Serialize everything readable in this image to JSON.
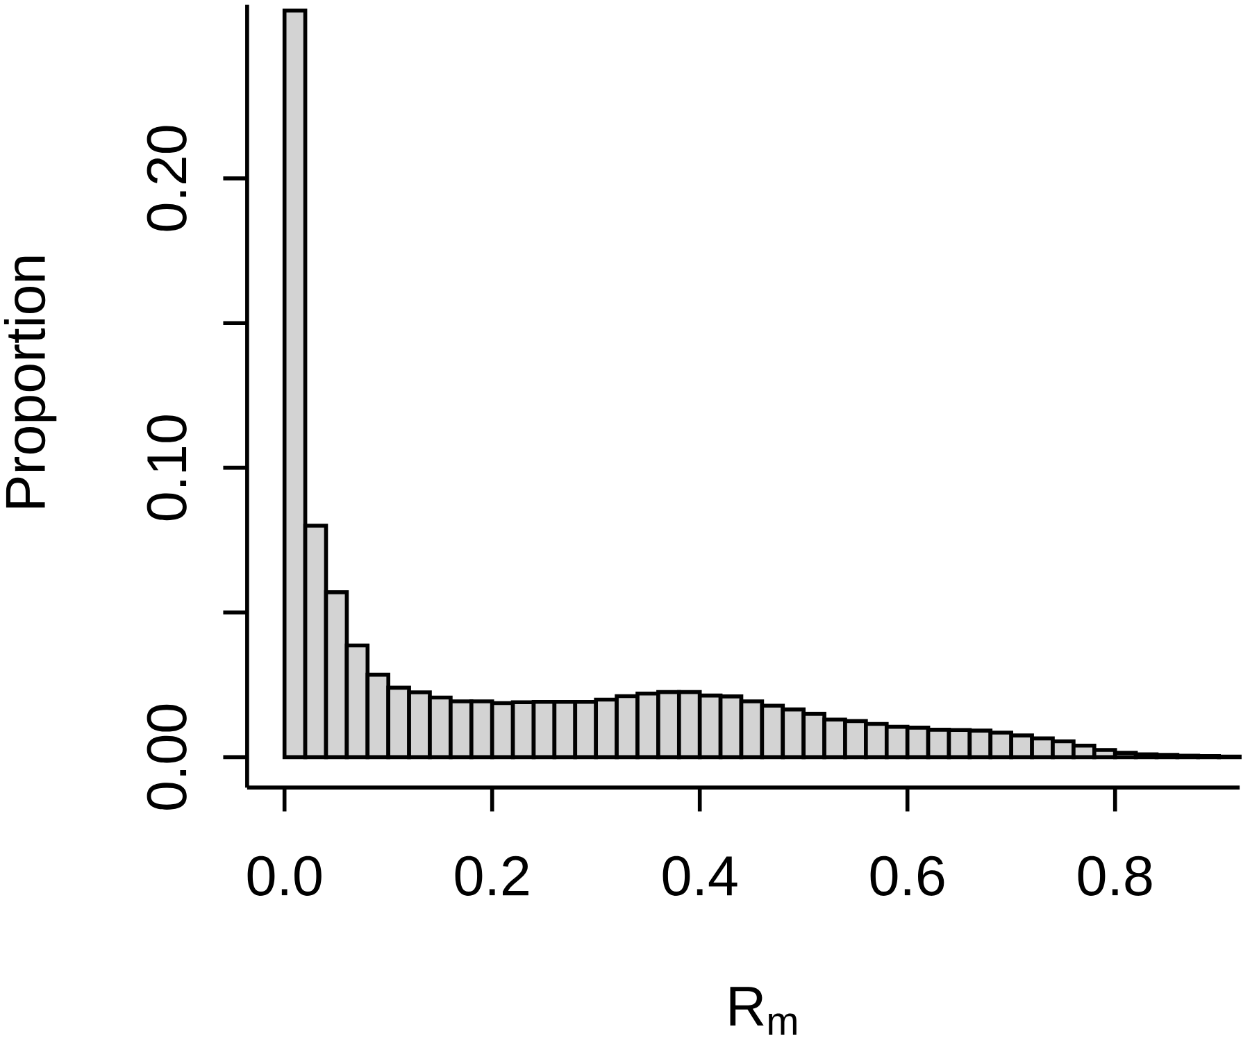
{
  "chart_data": {
    "type": "histogram",
    "xlabel": "R$_{m}$",
    "ylabel": "Proportion",
    "color": "#d3d3d3",
    "bins": [
      0,
      0.02,
      0.04,
      0.06,
      0.08,
      0.1,
      0.12,
      0.14,
      0.16,
      0.18,
      0.2,
      0.22,
      0.24,
      0.26,
      0.28,
      0.3,
      0.32,
      0.34,
      0.36,
      0.38,
      0.4,
      0.42,
      0.44,
      0.46,
      0.48,
      0.5,
      0.52,
      0.54,
      0.56,
      0.58,
      0.6,
      0.62,
      0.64,
      0.66,
      0.68,
      0.7,
      0.72,
      0.74,
      0.76,
      0.78,
      0.8,
      0.82,
      0.84,
      0.86,
      0.88,
      0.9,
      0.92
    ],
    "values": [
      0.258,
      0.08,
      0.057,
      0.0386,
      0.0285,
      0.024,
      0.0224,
      0.0206,
      0.0193,
      0.0193,
      0.0187,
      0.019,
      0.0191,
      0.0191,
      0.0191,
      0.0199,
      0.0211,
      0.022,
      0.0225,
      0.0225,
      0.0213,
      0.021,
      0.0193,
      0.0178,
      0.0165,
      0.015,
      0.013,
      0.0125,
      0.0115,
      0.0105,
      0.0102,
      0.0095,
      0.0094,
      0.0092,
      0.0085,
      0.0075,
      0.0065,
      0.0055,
      0.004,
      0.0025,
      0.0015,
      0.001,
      0.0008,
      0.0005,
      0.0004,
      0.0002
    ],
    "xlim": [
      -0.036,
      0.92
    ],
    "ylim": [
      -0.0105,
      0.26
    ],
    "xticks": [
      {
        "value": 0,
        "label": "0.0"
      },
      {
        "value": 0.2,
        "label": "0.2"
      },
      {
        "value": 0.4,
        "label": "0.4"
      },
      {
        "value": 0.6,
        "label": "0.6"
      },
      {
        "value": 0.8,
        "label": "0.8"
      }
    ],
    "yticks": [
      {
        "value": 0,
        "label": "0.00"
      },
      {
        "value": 0.1,
        "label": "0.10"
      },
      {
        "value": 0.2,
        "label": "0.20"
      }
    ]
  }
}
